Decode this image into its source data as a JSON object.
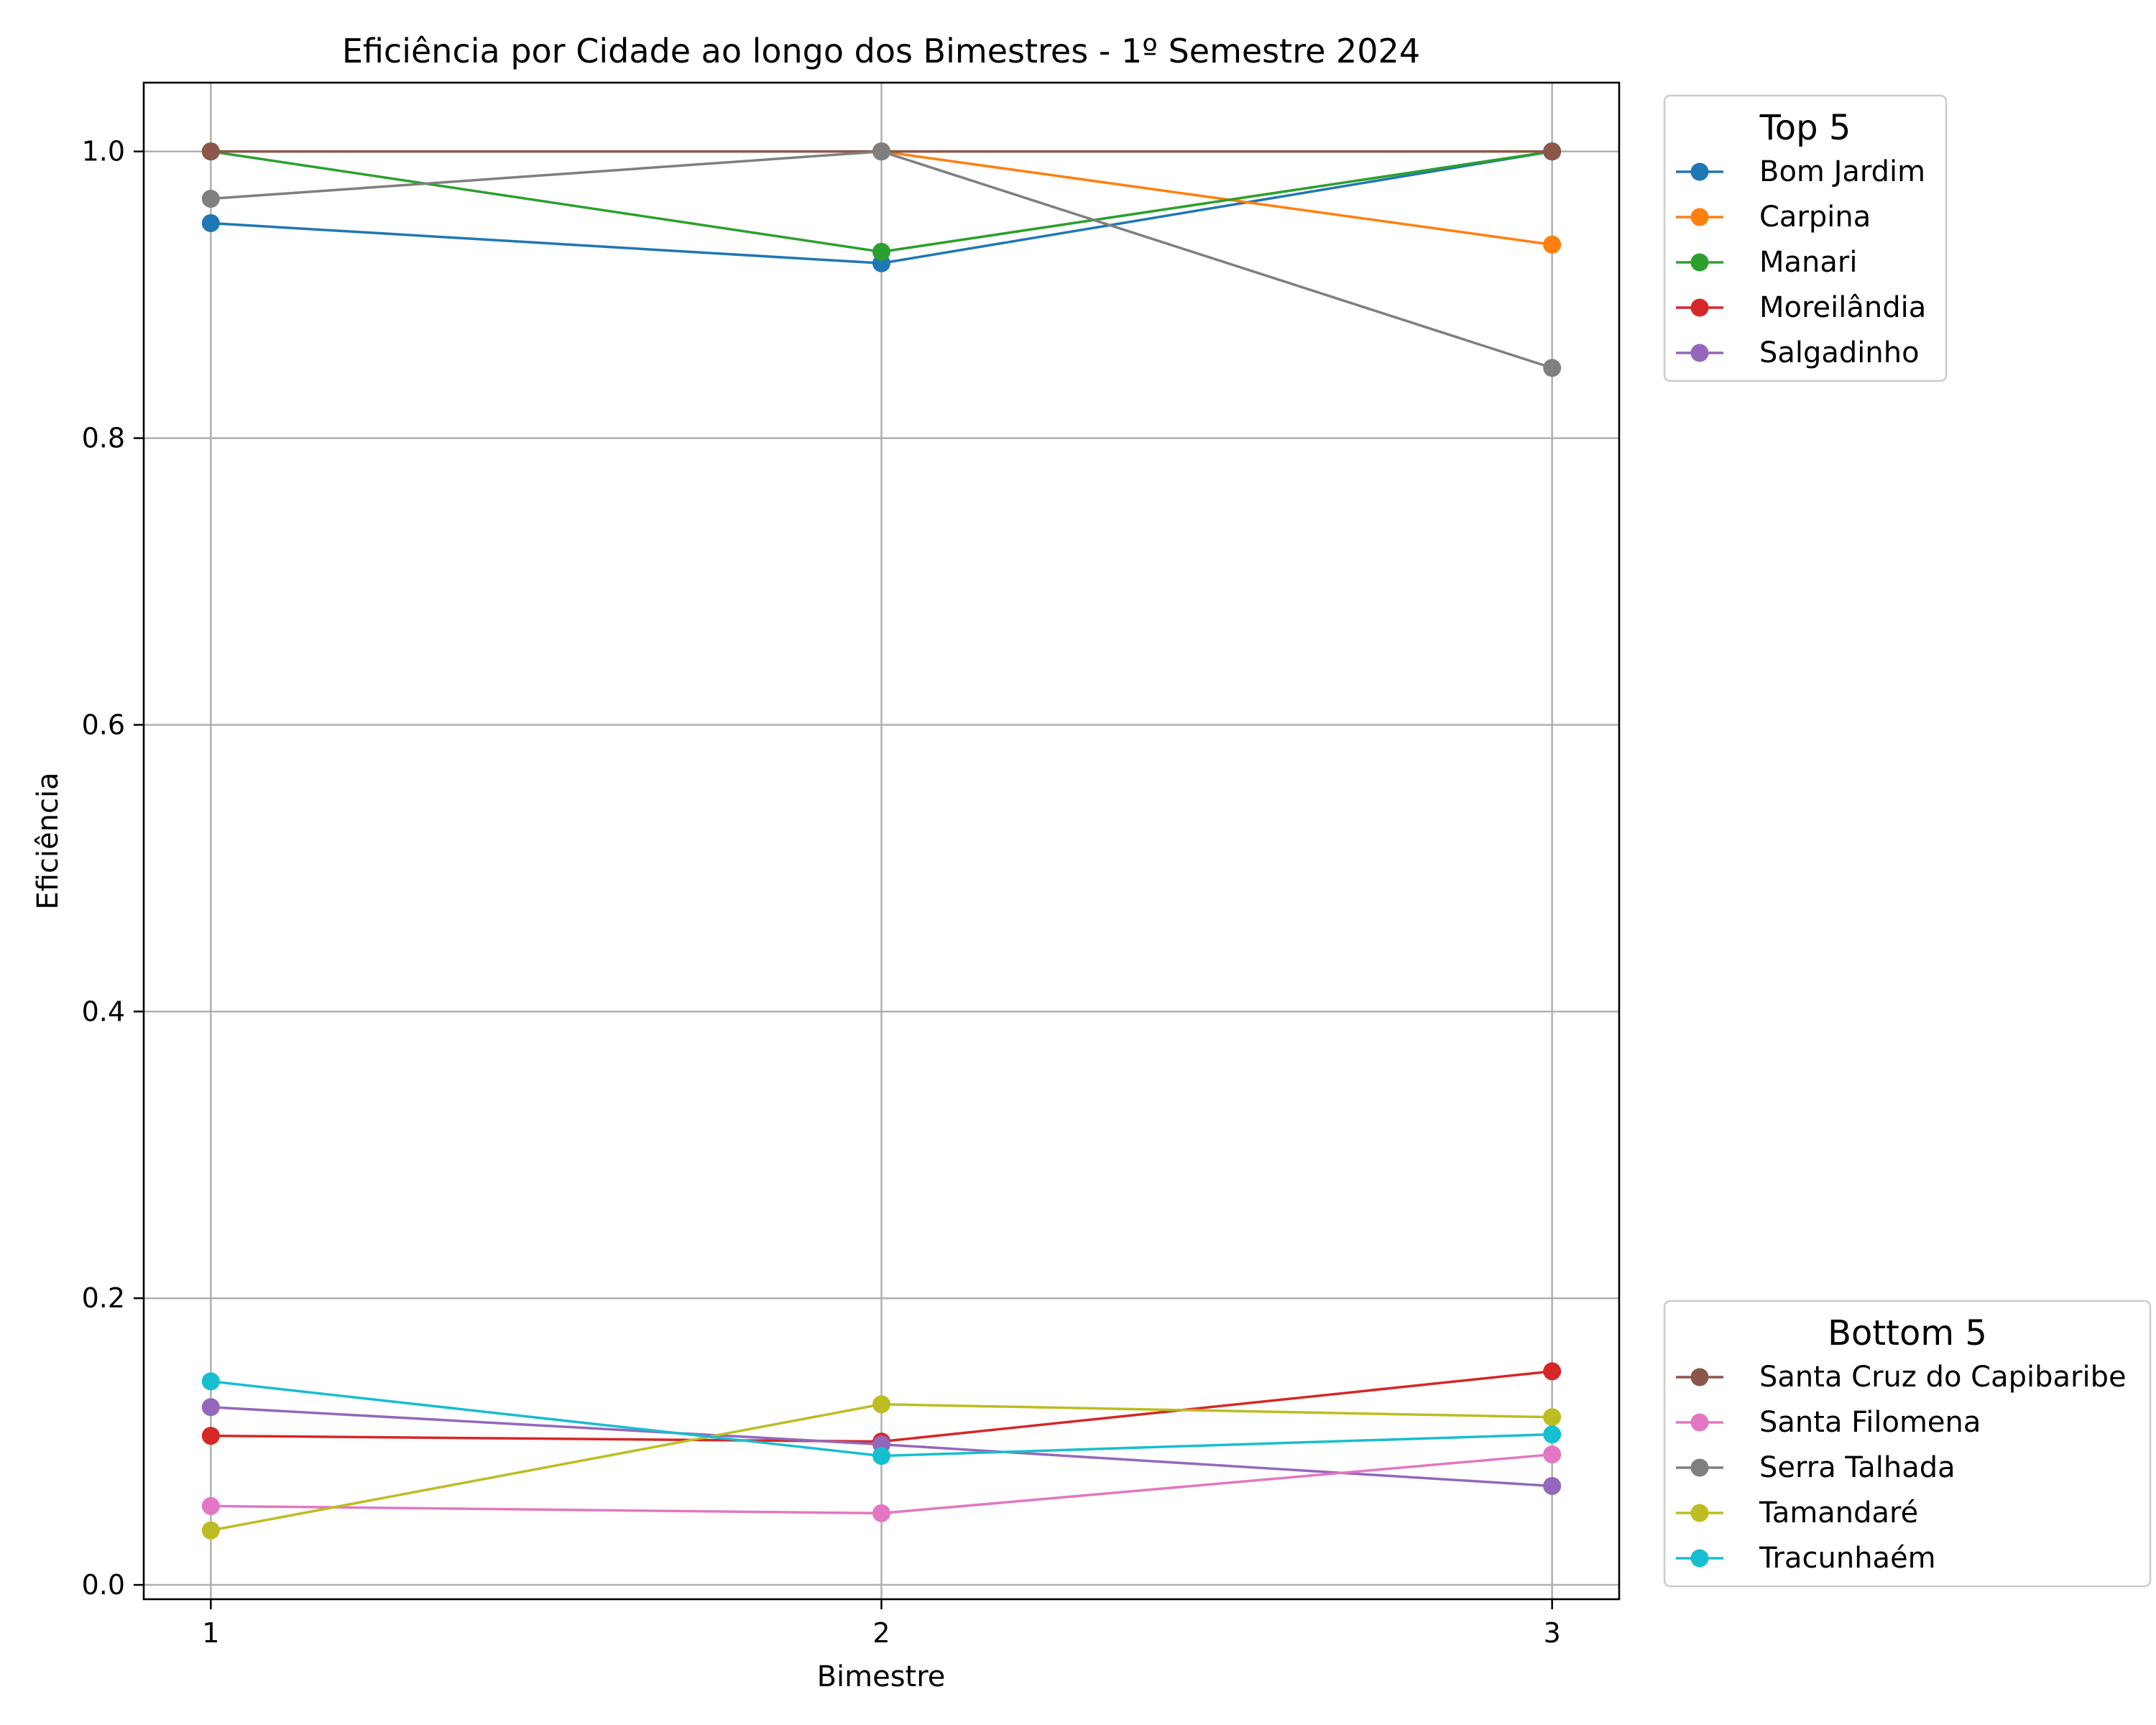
{
  "chart_data": {
    "type": "line",
    "title": "Eficiência por Cidade ao longo dos Bimestres - 1º Semestre 2024",
    "xlabel": "Bimestre",
    "ylabel": "Eficiência",
    "x": [
      1,
      2,
      3
    ],
    "x_ticks": [
      "1",
      "2",
      "3"
    ],
    "xlim": [
      0.9,
      3.1
    ],
    "ylim": [
      -0.01,
      1.048
    ],
    "y_ticks": [
      "0.0",
      "0.2",
      "0.4",
      "0.6",
      "0.8",
      "1.0"
    ],
    "grid": true,
    "legends": [
      {
        "title": "Top 5",
        "placement": "upper-right-outside",
        "entries": [
          "Bom Jardim",
          "Carpina",
          "Manari",
          "Moreilândia",
          "Salgadinho"
        ]
      },
      {
        "title": "Bottom 5",
        "placement": "lower-right-outside",
        "entries": [
          "Santa Cruz do Capibaribe",
          "Santa Filomena",
          "Serra Talhada",
          "Tamandaré",
          "Tracunhaém"
        ]
      }
    ],
    "series": [
      {
        "name": "Bom Jardim",
        "color": "#1f77b4",
        "values": [
          0.95,
          0.922,
          1.0
        ]
      },
      {
        "name": "Carpina",
        "color": "#ff7f0e",
        "values": [
          1.0,
          1.0,
          0.935
        ]
      },
      {
        "name": "Manari",
        "color": "#2ca02c",
        "values": [
          1.0,
          0.93,
          1.0
        ]
      },
      {
        "name": "Moreilândia",
        "color": "#d62728",
        "values": [
          0.104,
          0.1,
          0.149
        ]
      },
      {
        "name": "Salgadinho",
        "color": "#9467bd",
        "values": [
          0.124,
          0.098,
          0.069
        ]
      },
      {
        "name": "Santa Cruz do Capibaribe",
        "color": "#8c564b",
        "values": [
          1.0,
          1.0,
          1.0
        ]
      },
      {
        "name": "Santa Filomena",
        "color": "#e377c2",
        "values": [
          0.055,
          0.05,
          0.091
        ]
      },
      {
        "name": "Serra Talhada",
        "color": "#7f7f7f",
        "values": [
          0.967,
          1.0,
          0.849
        ]
      },
      {
        "name": "Tamandaré",
        "color": "#bcbd22",
        "values": [
          0.038,
          0.126,
          0.117
        ]
      },
      {
        "name": "Tracunhaém",
        "color": "#17becf",
        "values": [
          0.142,
          0.09,
          0.105
        ]
      }
    ]
  }
}
